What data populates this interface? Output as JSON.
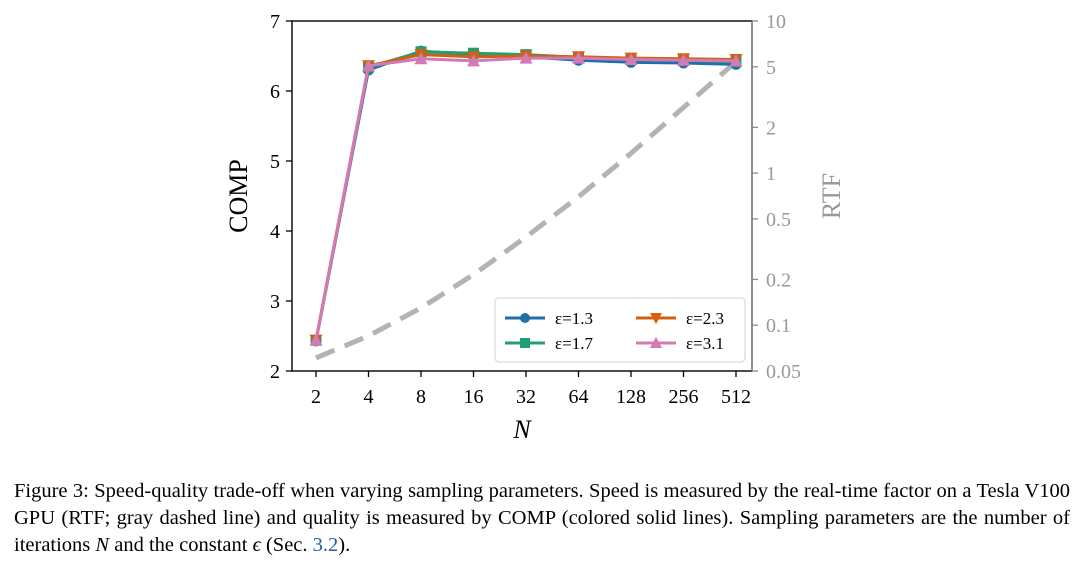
{
  "chart_data": {
    "type": "line",
    "x_label": "N",
    "x_categories": [
      "2",
      "4",
      "8",
      "16",
      "32",
      "64",
      "128",
      "256",
      "512"
    ],
    "left_axis": {
      "label": "COMP",
      "ylim": [
        2,
        7
      ],
      "ticks": [
        "2",
        "3",
        "4",
        "5",
        "6",
        "7"
      ]
    },
    "right_axis": {
      "label": "RTF",
      "scale": "log",
      "ylim": [
        0.05,
        10
      ],
      "ticks": [
        {
          "value": 0.05,
          "label": "0.05"
        },
        {
          "value": 0.1,
          "label": "0.1"
        },
        {
          "value": 0.2,
          "label": "0.2"
        },
        {
          "value": 0.5,
          "label": "0.5"
        },
        {
          "value": 1,
          "label": "1"
        },
        {
          "value": 2,
          "label": "2"
        },
        {
          "value": 5,
          "label": "5"
        },
        {
          "value": 10,
          "label": "10"
        }
      ]
    },
    "series": [
      {
        "name": "ε=1.3",
        "color": "#1f6fa8",
        "marker": "circle",
        "values": [
          2.43,
          6.3,
          6.57,
          6.52,
          6.49,
          6.44,
          6.41,
          6.4,
          6.38
        ]
      },
      {
        "name": "ε=1.7",
        "color": "#1f9e77",
        "marker": "square",
        "values": [
          2.44,
          6.34,
          6.56,
          6.54,
          6.52,
          6.48,
          6.46,
          6.44,
          6.42
        ]
      },
      {
        "name": "ε=2.3",
        "color": "#d0620f",
        "marker": "triangle-down",
        "values": [
          2.44,
          6.36,
          6.52,
          6.49,
          6.5,
          6.49,
          6.47,
          6.46,
          6.45
        ]
      },
      {
        "name": "ε=3.1",
        "color": "#d479b5",
        "marker": "triangle-up",
        "values": [
          2.44,
          6.36,
          6.46,
          6.43,
          6.47,
          6.47,
          6.45,
          6.44,
          6.43
        ]
      }
    ],
    "rtf_series": {
      "name": "RTF",
      "color": "#b3b3b3",
      "style": "dashed",
      "values": [
        0.061,
        0.085,
        0.13,
        0.215,
        0.38,
        0.7,
        1.35,
        2.7,
        5.4
      ]
    },
    "legend": {
      "placement": "bottom-right",
      "columns": 2
    }
  },
  "caption": {
    "label": "Figure 3:",
    "text_a": "Speed-quality trade-off when varying sampling parameters. Speed is measured by the real-time factor on a Tesla V100 GPU (RTF; gray dashed line) and quality is measured by COMP (colored solid lines). Sampling parameters are the number of iterations",
    "var_n": "N",
    "text_b": "and the constant",
    "var_eps": "ϵ",
    "text_c": "(Sec.",
    "ref": "3.2",
    "text_d": ")."
  }
}
